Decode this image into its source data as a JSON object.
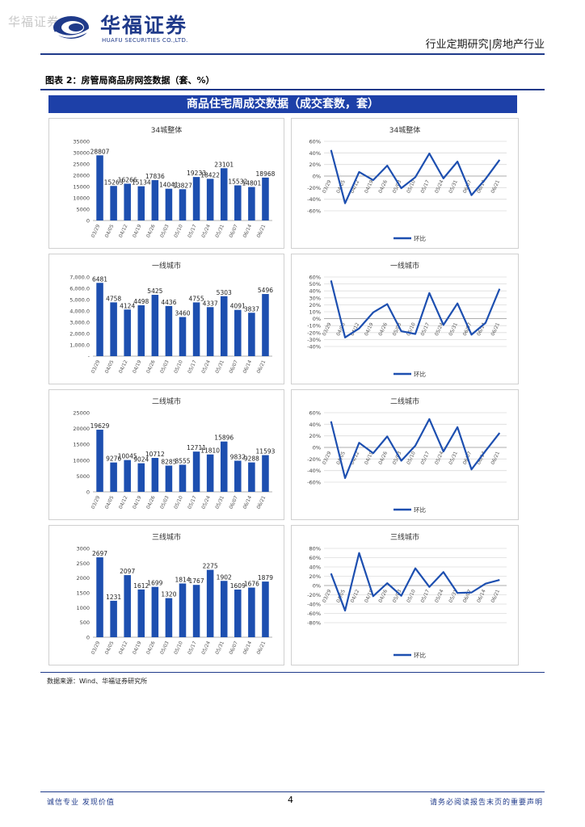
{
  "header": {
    "watermark": "华福证券",
    "logo_cn": "华福证券",
    "logo_en": "HUAFU SECURITIES CO.,LTD.",
    "report_type": "行业定期研究|房地产行业"
  },
  "figure": {
    "title": "图表 2：房管局商品房网签数据（套、%）",
    "banner": "商品住宅周成交数据（成交套数，套）",
    "source": "数据来源：Wind、华福证券研究所"
  },
  "footer": {
    "left": "诚信专业  发现价值",
    "page": "4",
    "right": "请务必阅读报告末页的重要声明"
  },
  "colors": {
    "accent": "#1f3a8a",
    "bar": "#1d4fb0",
    "line": "#1d4fb0",
    "grid": "#dcdcdc"
  },
  "chart_data": [
    {
      "type": "bar",
      "title": "34城整体",
      "categories": [
        "03/29",
        "04/05",
        "04/12",
        "04/19",
        "04/26",
        "05/03",
        "05/10",
        "05/17",
        "05/24",
        "05/31",
        "06/07",
        "06/14",
        "06/21"
      ],
      "values": [
        28807,
        15263,
        16266,
        15134,
        17836,
        14041,
        13827,
        19233,
        18422,
        23101,
        15532,
        14801,
        18968
      ],
      "ylim": [
        0,
        35000
      ],
      "yticks": [
        "0",
        "5000",
        "10000",
        "15000",
        "20000",
        "25000",
        "30000",
        "35000"
      ],
      "grid": false
    },
    {
      "type": "line",
      "title": "34城整体",
      "categories": [
        "03/29",
        "04/05",
        "04/12",
        "04/19",
        "04/26",
        "05/03",
        "05/10",
        "05/17",
        "05/24",
        "05/31",
        "06/07",
        "06/14",
        "06/21"
      ],
      "series": [
        {
          "name": "环比",
          "values": [
            45,
            -47,
            7,
            -7,
            18,
            -21,
            -2,
            39,
            -4,
            25,
            -33,
            -5,
            28
          ]
        }
      ],
      "ylim": [
        -60,
        60
      ],
      "yticks": [
        "-60%",
        "-40%",
        "-20%",
        "0%",
        "20%",
        "40%",
        "60%"
      ],
      "legend": "bottom-left",
      "grid": true
    },
    {
      "type": "bar",
      "title": "一线城市",
      "categories": [
        "03/29",
        "04/05",
        "04/12",
        "04/19",
        "04/26",
        "05/03",
        "05/10",
        "05/17",
        "05/24",
        "05/31",
        "06/07",
        "06/14",
        "06/21"
      ],
      "values": [
        6481,
        4758,
        4124,
        4498,
        5425,
        4436,
        3460,
        4755,
        4337,
        5303,
        4091,
        3837,
        5496
      ],
      "ylim": [
        0,
        7000
      ],
      "yticks": [
        "-",
        "1,000.0",
        "2,000.0",
        "3,000.0",
        "4,000.0",
        "5,000.0",
        "6,000.0",
        "7,000.0"
      ],
      "grid": false
    },
    {
      "type": "line",
      "title": "一线城市",
      "categories": [
        "03/29",
        "04/05",
        "04/12",
        "04/19",
        "04/26",
        "05/03",
        "05/10",
        "05/17",
        "05/24",
        "05/31",
        "06/07",
        "06/14",
        "06/21"
      ],
      "series": [
        {
          "name": "环比",
          "values": [
            55,
            -27,
            -14,
            9,
            21,
            -18,
            -22,
            37,
            -9,
            22,
            -23,
            -6,
            43
          ]
        }
      ],
      "ylim": [
        -40,
        60
      ],
      "yticks": [
        "-40%",
        "-30%",
        "-20%",
        "-10%",
        "0%",
        "10%",
        "20%",
        "30%",
        "40%",
        "50%",
        "60%"
      ],
      "legend": "bottom-left",
      "grid": true
    },
    {
      "type": "bar",
      "title": "二线城市",
      "categories": [
        "03/29",
        "04/05",
        "04/12",
        "04/19",
        "04/26",
        "05/03",
        "05/10",
        "05/17",
        "05/24",
        "05/31",
        "06/07",
        "06/14",
        "06/21"
      ],
      "values": [
        19629,
        9276,
        10045,
        9024,
        10712,
        8285,
        8555,
        12711,
        11810,
        15896,
        9832,
        9288,
        11593
      ],
      "ylim": [
        0,
        25000
      ],
      "yticks": [
        "0",
        "5000",
        "10000",
        "15000",
        "20000",
        "25000"
      ],
      "grid": false
    },
    {
      "type": "line",
      "title": "二线城市",
      "categories": [
        "03/29",
        "04/05",
        "04/12",
        "04/19",
        "04/26",
        "05/03",
        "05/10",
        "05/17",
        "05/24",
        "05/31",
        "06/07",
        "06/14",
        "06/21"
      ],
      "series": [
        {
          "name": "环比",
          "values": [
            45,
            -53,
            8,
            -10,
            19,
            -23,
            3,
            49,
            -7,
            35,
            -38,
            -6,
            25
          ]
        }
      ],
      "ylim": [
        -60,
        60
      ],
      "yticks": [
        "-60%",
        "-40%",
        "-20%",
        "0%",
        "20%",
        "40%",
        "60%"
      ],
      "legend": "bottom-left",
      "grid": true
    },
    {
      "type": "bar",
      "title": "三线城市",
      "categories": [
        "03/29",
        "04/05",
        "04/12",
        "04/19",
        "04/26",
        "05/03",
        "05/10",
        "05/17",
        "05/24",
        "05/31",
        "06/07",
        "06/14",
        "06/21"
      ],
      "values": [
        2697,
        1231,
        2097,
        1612,
        1699,
        1320,
        1814,
        1767,
        2275,
        1902,
        1609,
        1676,
        1879
      ],
      "ylim": [
        0,
        3000
      ],
      "yticks": [
        "0",
        "500",
        "1000",
        "1500",
        "2000",
        "2500",
        "3000"
      ],
      "grid": false
    },
    {
      "type": "line",
      "title": "三线城市",
      "categories": [
        "03/29",
        "04/05",
        "04/12",
        "04/19",
        "04/26",
        "05/03",
        "05/10",
        "05/17",
        "05/24",
        "05/31",
        "06/07",
        "06/14",
        "06/21"
      ],
      "series": [
        {
          "name": "环比",
          "values": [
            26,
            -54,
            70,
            -23,
            5,
            -22,
            37,
            -3,
            29,
            -16,
            -15,
            4,
            12
          ]
        }
      ],
      "ylim": [
        -80,
        80
      ],
      "yticks": [
        "-80%",
        "-60%",
        "-40%",
        "-20%",
        "0%",
        "20%",
        "40%",
        "60%",
        "80%"
      ],
      "legend": "bottom-left",
      "grid": true
    }
  ]
}
